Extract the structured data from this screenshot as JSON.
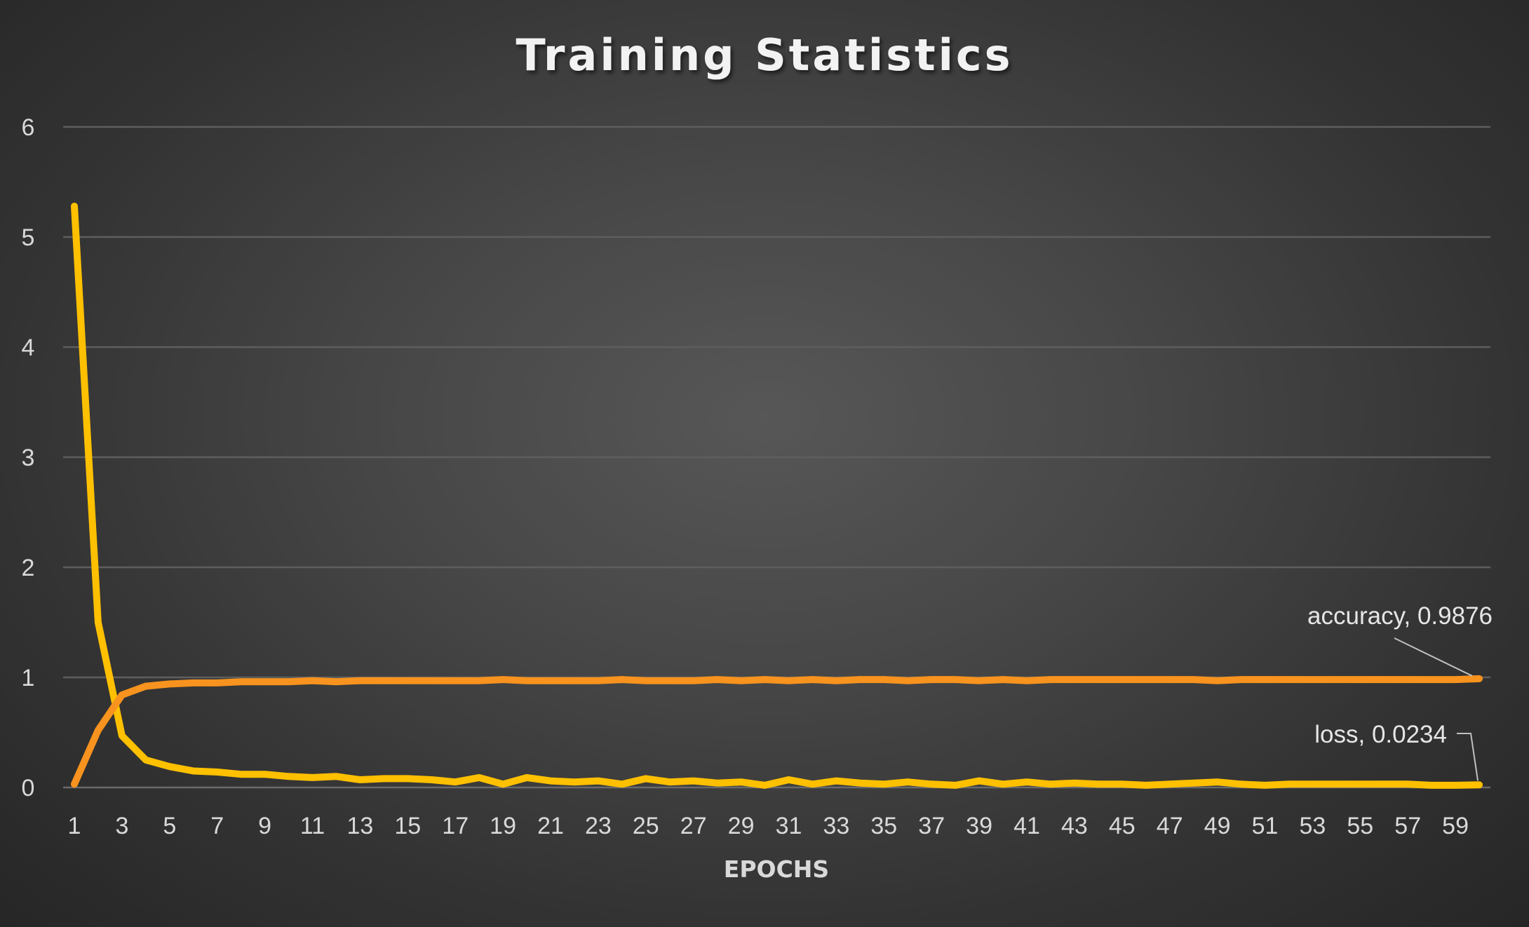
{
  "chart_data": {
    "type": "line",
    "title": "Training Statistics",
    "xlabel": "EPOCHS",
    "ylabel": "",
    "ylim": [
      0,
      6
    ],
    "yticks": [
      0,
      1,
      2,
      3,
      4,
      5,
      6
    ],
    "grid": true,
    "x": [
      1,
      2,
      3,
      4,
      5,
      6,
      7,
      8,
      9,
      10,
      11,
      12,
      13,
      14,
      15,
      16,
      17,
      18,
      19,
      20,
      21,
      22,
      23,
      24,
      25,
      26,
      27,
      28,
      29,
      30,
      31,
      32,
      33,
      34,
      35,
      36,
      37,
      38,
      39,
      40,
      41,
      42,
      43,
      44,
      45,
      46,
      47,
      48,
      49,
      50,
      51,
      52,
      53,
      54,
      55,
      56,
      57,
      58,
      59,
      60
    ],
    "xtick_labels": [
      "1",
      "3",
      "5",
      "7",
      "9",
      "11",
      "13",
      "15",
      "17",
      "19",
      "21",
      "23",
      "25",
      "27",
      "29",
      "31",
      "33",
      "35",
      "37",
      "39",
      "41",
      "43",
      "45",
      "47",
      "49",
      "51",
      "53",
      "55",
      "57",
      "59"
    ],
    "series": [
      {
        "name": "loss",
        "color": "#FFC000",
        "values": [
          5.28,
          1.5,
          0.47,
          0.25,
          0.19,
          0.15,
          0.14,
          0.12,
          0.12,
          0.1,
          0.09,
          0.1,
          0.07,
          0.08,
          0.08,
          0.07,
          0.05,
          0.09,
          0.03,
          0.09,
          0.06,
          0.05,
          0.06,
          0.03,
          0.08,
          0.05,
          0.06,
          0.04,
          0.05,
          0.02,
          0.07,
          0.03,
          0.06,
          0.04,
          0.03,
          0.05,
          0.03,
          0.02,
          0.06,
          0.03,
          0.05,
          0.03,
          0.04,
          0.03,
          0.03,
          0.02,
          0.03,
          0.04,
          0.05,
          0.03,
          0.02,
          0.03,
          0.03,
          0.03,
          0.03,
          0.03,
          0.03,
          0.02,
          0.02,
          0.0234
        ]
      },
      {
        "name": "accuracy",
        "color": "#F7931E",
        "values": [
          0.03,
          0.52,
          0.84,
          0.92,
          0.94,
          0.95,
          0.95,
          0.96,
          0.96,
          0.96,
          0.97,
          0.96,
          0.97,
          0.97,
          0.97,
          0.97,
          0.97,
          0.97,
          0.98,
          0.97,
          0.97,
          0.97,
          0.97,
          0.98,
          0.97,
          0.97,
          0.97,
          0.98,
          0.97,
          0.98,
          0.97,
          0.98,
          0.97,
          0.98,
          0.98,
          0.97,
          0.98,
          0.98,
          0.97,
          0.98,
          0.97,
          0.98,
          0.98,
          0.98,
          0.98,
          0.98,
          0.98,
          0.98,
          0.97,
          0.98,
          0.98,
          0.98,
          0.98,
          0.98,
          0.98,
          0.98,
          0.98,
          0.98,
          0.98,
          0.9876
        ]
      }
    ],
    "data_labels": [
      {
        "text": "accuracy, 0.9876"
      },
      {
        "text": "loss, 0.0234"
      }
    ]
  }
}
